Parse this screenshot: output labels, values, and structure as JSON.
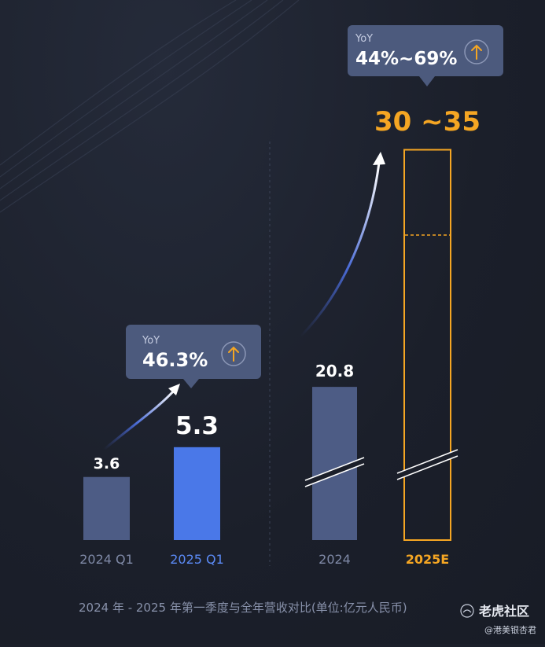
{
  "chart_data": [
    {
      "type": "bar",
      "categories": [
        "2024 Q1",
        "2025 Q1"
      ],
      "values": [
        3.6,
        5.3
      ],
      "value_labels": [
        "3.6",
        "5.3"
      ],
      "yoy": {
        "label": "YoY",
        "value": "46.3%"
      }
    },
    {
      "type": "bar",
      "categories": [
        "2024",
        "2025E"
      ],
      "values": [
        20.8,
        [
          30,
          35
        ]
      ],
      "value_labels": [
        "20.8",
        "30 ~35"
      ],
      "yoy": {
        "label": "YoY",
        "value": "44%~69%"
      }
    }
  ],
  "caption": "2024 年 - 2025 年第一季度与全年营收对比(单位:亿元人民币)",
  "watermark": {
    "brand": "老虎社区",
    "author": "@港美银杏君"
  },
  "colors": {
    "bar_2024": "#4d5c85",
    "bar_2025q1": "#4a78e8",
    "accent_orange": "#f5a623",
    "label_muted": "#7f89a6",
    "label_blue": "#5b8af5",
    "tooltip_bg": "#4c5a7d"
  },
  "icons": {
    "up_arrow": "up-arrow-circle-icon"
  }
}
